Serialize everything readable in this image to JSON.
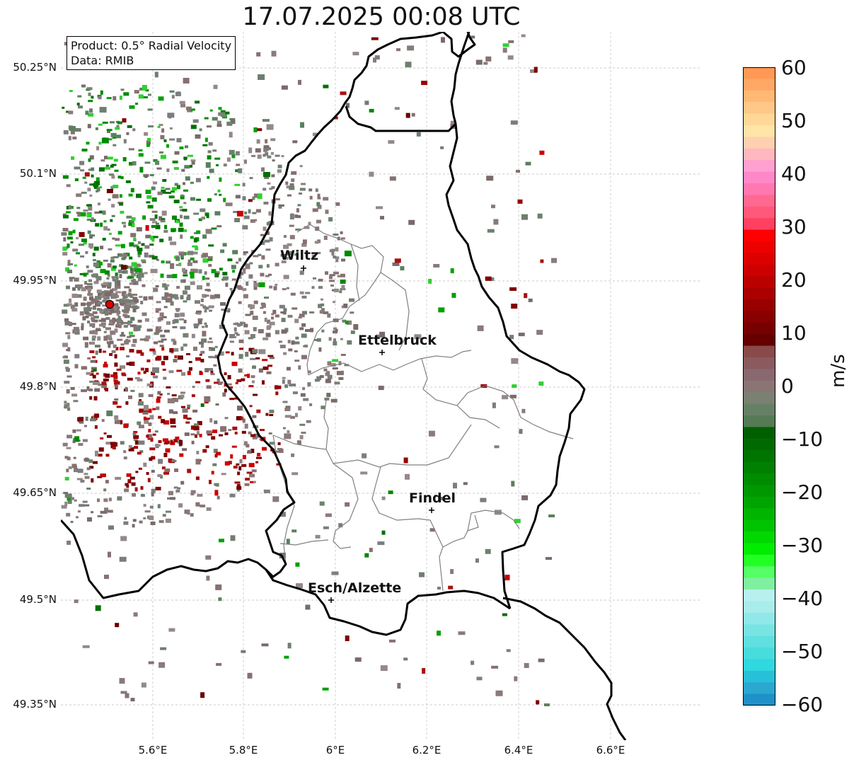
{
  "title": "17.07.2025 00:08 UTC",
  "info_box": {
    "product_line": "Product: 0.5° Radial Velocity",
    "data_line": "Data: RMIB"
  },
  "axes": {
    "lat_ticks": [
      "50.25°N",
      "50.1°N",
      "49.95°N",
      "49.8°N",
      "49.65°N",
      "49.5°N",
      "49.35°N"
    ],
    "lon_ticks": [
      "5.6°E",
      "5.8°E",
      "6°E",
      "6.2°E",
      "6.4°E",
      "6.6°E"
    ]
  },
  "cities": [
    {
      "name": "Wiltz"
    },
    {
      "name": "Ettelbruck"
    },
    {
      "name": "Findel"
    },
    {
      "name": "Esch/Alzette"
    }
  ],
  "colorbar": {
    "label": "m/s",
    "ticks": [
      "60",
      "50",
      "40",
      "30",
      "20",
      "10",
      "0",
      "−10",
      "−20",
      "−30",
      "−40",
      "−50",
      "−60"
    ],
    "range": [
      -60,
      60
    ]
  },
  "colors": {
    "border": "#000000",
    "canton_lines": "#808080",
    "radar_site": "#e00000"
  }
}
